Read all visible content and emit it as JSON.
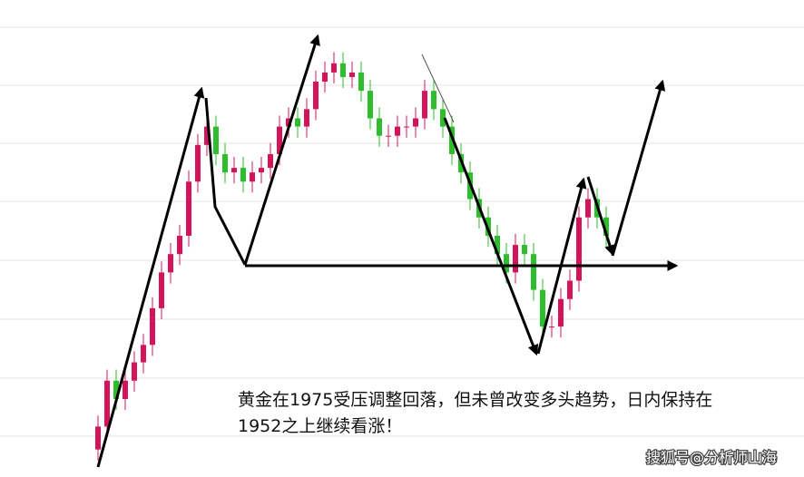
{
  "chart_data": {
    "type": "candlestick",
    "annotation_lines": [
      "黄金在1975受压调整回落，但未曾改变多头趋势，日内保持在",
      "1952之上继续看涨！"
    ],
    "watermark": "搜狐号@分析师山海",
    "up_color": "#d4145a",
    "down_color": "#2dbd2d",
    "ylim": [
      1929,
      1981
    ],
    "ohlc": [
      [
        1932.0,
        1935.7,
        1930.8,
        1934.5
      ],
      [
        1934.5,
        1940.7,
        1933.3,
        1939.5
      ],
      [
        1939.5,
        1940.7,
        1936.3,
        1937.5
      ],
      [
        1937.5,
        1940.7,
        1936.3,
        1939.5
      ],
      [
        1939.5,
        1942.7,
        1938.3,
        1941.5
      ],
      [
        1941.5,
        1944.6,
        1940.3,
        1943.4
      ],
      [
        1943.4,
        1948.6,
        1942.2,
        1947.4
      ],
      [
        1947.4,
        1952.5,
        1946.2,
        1951.3
      ],
      [
        1951.3,
        1954.5,
        1950.1,
        1953.3
      ],
      [
        1953.3,
        1956.5,
        1952.1,
        1955.3
      ],
      [
        1955.3,
        1962.4,
        1954.1,
        1961.2
      ],
      [
        1961.2,
        1966.4,
        1960.0,
        1965.2
      ],
      [
        1965.2,
        1968.4,
        1964.0,
        1967.2
      ],
      [
        1967.2,
        1968.4,
        1963.0,
        1964.2
      ],
      [
        1964.2,
        1965.4,
        1961.0,
        1962.2
      ],
      [
        1962.2,
        1963.9,
        1961.0,
        1962.7
      ],
      [
        1962.7,
        1963.9,
        1960.0,
        1961.2
      ],
      [
        1961.2,
        1963.4,
        1960.0,
        1962.2
      ],
      [
        1962.2,
        1963.9,
        1961.0,
        1962.7
      ],
      [
        1962.7,
        1965.4,
        1961.5,
        1964.2
      ],
      [
        1964.2,
        1968.4,
        1963.0,
        1967.2
      ],
      [
        1967.2,
        1969.3,
        1966.0,
        1968.1
      ],
      [
        1968.1,
        1969.3,
        1966.0,
        1967.2
      ],
      [
        1967.2,
        1970.3,
        1966.0,
        1969.1
      ],
      [
        1969.1,
        1973.3,
        1967.9,
        1972.1
      ],
      [
        1972.1,
        1974.3,
        1970.9,
        1973.1
      ],
      [
        1973.1,
        1975.3,
        1971.9,
        1974.1
      ],
      [
        1974.1,
        1975.3,
        1971.4,
        1972.6
      ],
      [
        1972.6,
        1974.3,
        1971.4,
        1973.1
      ],
      [
        1973.1,
        1974.3,
        1969.9,
        1971.1
      ],
      [
        1971.1,
        1972.3,
        1966.9,
        1968.1
      ],
      [
        1968.1,
        1969.3,
        1965.0,
        1966.2
      ],
      [
        1966.2,
        1967.4,
        1965.0,
        1966.2
      ],
      [
        1966.2,
        1968.4,
        1965.0,
        1967.2
      ],
      [
        1967.2,
        1968.4,
        1966.0,
        1967.2
      ],
      [
        1967.2,
        1969.3,
        1966.0,
        1968.1
      ],
      [
        1968.1,
        1972.3,
        1966.9,
        1971.1
      ],
      [
        1971.1,
        1972.3,
        1967.9,
        1969.1
      ],
      [
        1969.1,
        1970.3,
        1966.0,
        1967.2
      ],
      [
        1967.2,
        1968.4,
        1963.0,
        1964.2
      ],
      [
        1964.2,
        1965.4,
        1961.0,
        1962.2
      ],
      [
        1962.2,
        1963.4,
        1958.1,
        1959.3
      ],
      [
        1959.3,
        1960.5,
        1956.1,
        1957.3
      ],
      [
        1957.3,
        1958.5,
        1954.1,
        1955.3
      ],
      [
        1955.3,
        1956.5,
        1952.1,
        1953.3
      ],
      [
        1953.3,
        1954.5,
        1950.1,
        1951.3
      ],
      [
        1951.3,
        1955.5,
        1950.1,
        1954.3
      ],
      [
        1954.3,
        1955.5,
        1952.1,
        1953.3
      ],
      [
        1953.3,
        1954.5,
        1948.2,
        1949.4
      ],
      [
        1949.4,
        1950.6,
        1944.2,
        1945.4
      ],
      [
        1945.4,
        1946.6,
        1944.2,
        1945.4
      ],
      [
        1945.4,
        1949.6,
        1944.2,
        1948.4
      ],
      [
        1948.4,
        1951.6,
        1947.2,
        1950.4
      ],
      [
        1950.4,
        1958.5,
        1949.2,
        1957.3
      ],
      [
        1957.3,
        1960.5,
        1956.1,
        1959.3
      ],
      [
        1959.3,
        1960.5,
        1956.1,
        1957.3
      ],
      [
        1957.3,
        1958.5,
        1954.1,
        1955.3
      ]
    ]
  }
}
